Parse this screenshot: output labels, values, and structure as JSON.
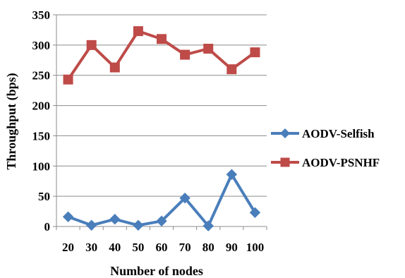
{
  "chart_data": {
    "type": "line",
    "categories": [
      "20",
      "30",
      "40",
      "50",
      "60",
      "70",
      "80",
      "90",
      "100"
    ],
    "series": [
      {
        "name": "AODV-Selfish",
        "color": "#4A7EBB",
        "marker": "diamond",
        "values": [
          16,
          2,
          12,
          2,
          9,
          47,
          1,
          86,
          23
        ]
      },
      {
        "name": "AODV-PSNHF",
        "color": "#BE4B48",
        "marker": "square",
        "values": [
          243,
          300,
          263,
          323,
          310,
          284,
          294,
          260,
          288
        ]
      }
    ],
    "xlabel": "Number of nodes",
    "ylabel": "Throughput (bps)",
    "ylim": [
      0,
      350
    ],
    "yticks": [
      "0",
      "50",
      "100",
      "150",
      "200",
      "250",
      "300",
      "350"
    ],
    "grid": true,
    "legend": "right"
  }
}
